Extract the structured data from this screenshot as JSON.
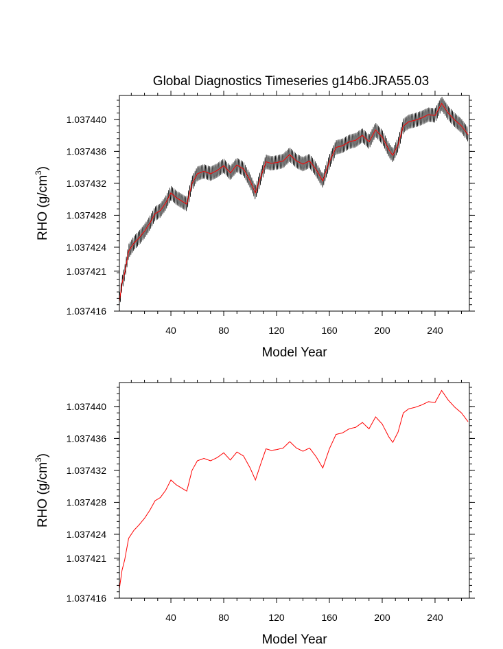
{
  "figure": {
    "title": "Global Diagnostics Timeseries g14b6.JRA55.03"
  },
  "colors": {
    "black": "#000000",
    "red": "#ff0000",
    "background": "#ffffff"
  },
  "chart_data": [
    {
      "type": "line",
      "panel": "top",
      "title": "Global Diagnostics Timeseries g14b6.JRA55.03",
      "xlabel": "Model Year",
      "ylabel": "RHO (g/cm",
      "ylabel_superscript": "3",
      "ylabel_suffix": ")",
      "xlim": [
        1,
        266
      ],
      "ylim": [
        1.037416,
        1.037443
      ],
      "x_ticks": [
        40,
        80,
        120,
        160,
        200,
        240
      ],
      "x_tick_labels": [
        "40",
        "80",
        "120",
        "160",
        "200",
        "240"
      ],
      "y_ticks": [
        1.037416,
        1.037421,
        1.037424,
        1.037428,
        1.037432,
        1.037436,
        1.03744
      ],
      "y_tick_labels": [
        "1.037416",
        "1.037421",
        "1.037424",
        "1.037428",
        "1.037432",
        "1.037436",
        "1.037440"
      ],
      "grid": false,
      "series": [
        {
          "kind": "monthly",
          "color": "#000000",
          "seasonal_amplitude": 9e-07,
          "x": [
            1,
            3,
            5,
            8,
            12,
            16,
            20,
            24,
            28,
            32,
            36,
            40,
            44,
            48,
            52,
            56,
            60,
            65,
            70,
            75,
            80,
            85,
            90,
            95,
            100,
            104,
            108,
            112,
            116,
            120,
            125,
            130,
            135,
            140,
            145,
            150,
            155,
            160,
            165,
            170,
            175,
            180,
            185,
            190,
            195,
            200,
            205,
            208,
            212,
            216,
            220,
            225,
            230,
            235,
            240,
            245,
            250,
            255,
            260,
            265
          ],
          "y": [
            1.0374172,
            1.0374195,
            1.0374208,
            1.0374235,
            1.0374245,
            1.0374252,
            1.037426,
            1.037427,
            1.0374282,
            1.0374286,
            1.0374295,
            1.0374308,
            1.0374302,
            1.0374298,
            1.0374294,
            1.037432,
            1.0374332,
            1.0374335,
            1.0374332,
            1.0374336,
            1.0374342,
            1.0374333,
            1.0374343,
            1.0374338,
            1.0374323,
            1.0374308,
            1.0374328,
            1.0374347,
            1.0374345,
            1.0374346,
            1.0374348,
            1.0374356,
            1.0374348,
            1.0374344,
            1.0374348,
            1.0374337,
            1.0374323,
            1.0374347,
            1.0374365,
            1.0374367,
            1.0374372,
            1.0374374,
            1.037438,
            1.0374372,
            1.0374387,
            1.0374378,
            1.0374362,
            1.0374355,
            1.0374368,
            1.0374392,
            1.0374397,
            1.0374399,
            1.0374402,
            1.0374406,
            1.0374405,
            1.037442,
            1.0374408,
            1.0374399,
            1.0374392,
            1.0374381
          ]
        },
        {
          "kind": "annual-mean",
          "color": "#ff0000",
          "x": [
            1,
            3,
            5,
            8,
            12,
            16,
            20,
            24,
            28,
            32,
            36,
            40,
            44,
            48,
            52,
            56,
            60,
            65,
            70,
            75,
            80,
            85,
            90,
            95,
            100,
            104,
            108,
            112,
            116,
            120,
            125,
            130,
            135,
            140,
            145,
            150,
            155,
            160,
            165,
            170,
            175,
            180,
            185,
            190,
            195,
            200,
            205,
            208,
            212,
            216,
            220,
            225,
            230,
            235,
            240,
            245,
            250,
            255,
            260,
            265
          ],
          "y": [
            1.0374172,
            1.0374195,
            1.0374208,
            1.0374235,
            1.0374245,
            1.0374252,
            1.037426,
            1.037427,
            1.0374282,
            1.0374286,
            1.0374295,
            1.0374308,
            1.0374302,
            1.0374298,
            1.0374294,
            1.037432,
            1.0374332,
            1.0374335,
            1.0374332,
            1.0374336,
            1.0374342,
            1.0374333,
            1.0374343,
            1.0374338,
            1.0374323,
            1.0374308,
            1.0374328,
            1.0374347,
            1.0374345,
            1.0374346,
            1.0374348,
            1.0374356,
            1.0374348,
            1.0374344,
            1.0374348,
            1.0374337,
            1.0374323,
            1.0374347,
            1.0374365,
            1.0374367,
            1.0374372,
            1.0374374,
            1.037438,
            1.0374372,
            1.0374387,
            1.0374378,
            1.0374362,
            1.0374355,
            1.0374368,
            1.0374392,
            1.0374397,
            1.0374399,
            1.0374402,
            1.0374406,
            1.0374405,
            1.037442,
            1.0374408,
            1.0374399,
            1.0374392,
            1.0374381
          ]
        }
      ]
    },
    {
      "type": "line",
      "panel": "bottom",
      "title": "",
      "xlabel": "Model Year",
      "ylabel": "RHO (g/cm",
      "ylabel_superscript": "3",
      "ylabel_suffix": ")",
      "xlim": [
        1,
        266
      ],
      "ylim": [
        1.037416,
        1.037443
      ],
      "x_ticks": [
        40,
        80,
        120,
        160,
        200,
        240
      ],
      "x_tick_labels": [
        "40",
        "80",
        "120",
        "160",
        "200",
        "240"
      ],
      "y_ticks": [
        1.037416,
        1.037421,
        1.037424,
        1.037428,
        1.037432,
        1.037436,
        1.03744
      ],
      "y_tick_labels": [
        "1.037416",
        "1.037421",
        "1.037424",
        "1.037428",
        "1.037432",
        "1.037436",
        "1.037440"
      ],
      "grid": false,
      "series": [
        {
          "kind": "annual-mean",
          "color": "#ff0000",
          "x": [
            1,
            3,
            5,
            8,
            12,
            16,
            20,
            24,
            28,
            32,
            36,
            40,
            44,
            48,
            52,
            56,
            60,
            65,
            70,
            75,
            80,
            85,
            90,
            95,
            100,
            104,
            108,
            112,
            116,
            120,
            125,
            130,
            135,
            140,
            145,
            150,
            155,
            160,
            165,
            170,
            175,
            180,
            185,
            190,
            195,
            200,
            205,
            208,
            212,
            216,
            220,
            225,
            230,
            235,
            240,
            245,
            250,
            255,
            260,
            265
          ],
          "y": [
            1.0374172,
            1.0374195,
            1.0374208,
            1.0374235,
            1.0374245,
            1.0374252,
            1.037426,
            1.037427,
            1.0374282,
            1.0374286,
            1.0374295,
            1.0374308,
            1.0374302,
            1.0374298,
            1.0374294,
            1.037432,
            1.0374332,
            1.0374335,
            1.0374332,
            1.0374336,
            1.0374342,
            1.0374333,
            1.0374343,
            1.0374338,
            1.0374323,
            1.0374308,
            1.0374328,
            1.0374347,
            1.0374345,
            1.0374346,
            1.0374348,
            1.0374356,
            1.0374348,
            1.0374344,
            1.0374348,
            1.0374337,
            1.0374323,
            1.0374347,
            1.0374365,
            1.0374367,
            1.0374372,
            1.0374374,
            1.037438,
            1.0374372,
            1.0374387,
            1.0374378,
            1.0374362,
            1.0374355,
            1.0374368,
            1.0374392,
            1.0374397,
            1.0374399,
            1.0374402,
            1.0374406,
            1.0374405,
            1.037442,
            1.0374408,
            1.0374399,
            1.0374392,
            1.0374381
          ]
        }
      ]
    }
  ]
}
